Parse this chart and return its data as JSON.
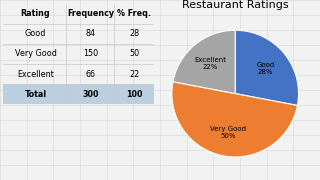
{
  "title": "Restaurant Ratings",
  "table_headers": [
    "Rating",
    "Frequency",
    "% Freq."
  ],
  "table_rows": [
    [
      "Good",
      "84",
      "28"
    ],
    [
      "Very Good",
      "150",
      "50"
    ],
    [
      "Excellent",
      "66",
      "22"
    ],
    [
      "Total",
      "300",
      "100"
    ]
  ],
  "pie_labels": [
    "Good",
    "Very Good",
    "Excellent"
  ],
  "pie_values": [
    28,
    50,
    22
  ],
  "pie_colors": [
    "#4472C4",
    "#ED7D31",
    "#A5A5A5"
  ],
  "pie_label_texts": [
    "Good\n28%",
    "Very Good\n50%",
    "Excellent\n22%"
  ],
  "background_color": "#F2F2F2",
  "cell_color": "#FFFFFF",
  "grid_color": "#C8C8C8",
  "total_bg": "#BBCFE0",
  "title_fontsize": 8,
  "table_fontsize": 5.8,
  "pie_label_fontsize": 5.0
}
